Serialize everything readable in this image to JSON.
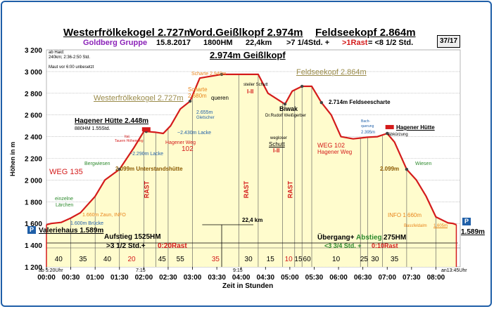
{
  "header": {
    "line1": [
      "Westerfrölkekogel 2.727m",
      "Vord.Geißlkopf 2.974m",
      "Feldseekopf 2.864m"
    ],
    "group": "Goldberg Gruppe",
    "date": "15.8.2017",
    "elev_gain": "1800HM",
    "distance": "22,4km",
    "time_part1": ">7 1/4Std. +",
    "time_rast": ">1Rast",
    "time_part2": "= <8 1/2 Std.",
    "page": "37/17"
  },
  "notes": {
    "ab_haid": "ab Haid:",
    "ab_haid_detail": "240km; 2:36-2:50 Std.",
    "maut": "Maut vor 6:00 unbesetzt"
  },
  "chart_data": {
    "type": "line",
    "title": "",
    "xlabel": "Zeit in Stunden",
    "ylabel": "Höhen in m",
    "xlim": [
      0,
      8.5
    ],
    "ylim": [
      1200,
      3200
    ],
    "x_ticks": [
      "00:00",
      "00:30",
      "01:00",
      "01:30",
      "02:00",
      "02:30",
      "03:00",
      "03:30",
      "04:00",
      "04:30",
      "05:00",
      "05:30",
      "06:00",
      "06:30",
      "07:00",
      "07:30",
      "08:00"
    ],
    "y_ticks": [
      "1 200",
      "1 400",
      "1 600",
      "1 800",
      "2 000",
      "2 200",
      "2 400",
      "2 600",
      "2 800",
      "3 000",
      "3 200"
    ],
    "grid": true,
    "series": [
      {
        "x": [
          0,
          0.1,
          0.3,
          0.5,
          0.7,
          1.0,
          1.2,
          1.5,
          1.8,
          2.0,
          2.05,
          2.25,
          2.4,
          2.55,
          2.75,
          2.95,
          3.15,
          3.6,
          3.95,
          4.35,
          4.55,
          4.9,
          5.05,
          5.25,
          5.45,
          5.65,
          5.85,
          6.05,
          6.3,
          6.6,
          6.8,
          7.0,
          7.15,
          7.4,
          7.6,
          7.8,
          8.0,
          8.25,
          8.35,
          8.42
        ],
        "y": [
          1589,
          1600,
          1610,
          1650,
          1700,
          1850,
          2000,
          2099,
          2300,
          2448,
          2448,
          2440,
          2430,
          2500,
          2655,
          2727,
          2940,
          2974,
          2974,
          2974,
          2800,
          2700,
          2820,
          2864,
          2864,
          2714,
          2600,
          2400,
          2380,
          2395,
          2400,
          2430,
          2350,
          2099,
          2000,
          1850,
          1660,
          1605,
          1600,
          1589
        ]
      }
    ],
    "segment_bands": {
      "minutes": [
        "40",
        "35",
        "40",
        "20",
        "45",
        "55",
        "35",
        "30",
        "15",
        "10",
        "15",
        "60",
        "10",
        "25",
        "30",
        "35"
      ],
      "rast_labels": [
        "RAST",
        "RAST",
        "RAST"
      ]
    },
    "annotations": {
      "peak_main": "2.974m  Geißlkopf",
      "peak_wfk": "Westerfrölkekogel 2.727m",
      "peak_fsk": "Feldseekopf 2.864m",
      "hut": "Hagener Hütte 2.448m",
      "hut_sub": "880HM 1.55Std.",
      "hut_right": "Hagener Hütte",
      "scharte_top": "Scharte 2.940m",
      "scharte_mid": "Scharte",
      "scharte_mid_alt": "2.680m",
      "queren": "queren",
      "gletscher_alt": "2.655m",
      "gletscher": "Gletscher",
      "lacke1": "~2.430m Lacke",
      "lacke2": "~2.290m Lacke",
      "hagener_weg": "Hagener Weg",
      "weg102_left": "102",
      "tauernhoehenweg": "Tauern Höhenweg",
      "ital": "Ital.",
      "steiler_schutt": "steiler Schutt",
      "grade_a": "I-II",
      "biwak": "Biwak",
      "biwak_sub": "Dr.Rudolf Weißgerber",
      "wegloser": "wegloser",
      "schutt": "Schutt",
      "grade_b": "I-II",
      "feldseescharte": "2.714m  Feldseescharte",
      "weg102_right": "WEG 102",
      "hagener_weg_right": "Hagener Weg",
      "bachquerung": "Bach-",
      "bachquerung2": "querung",
      "bach_alt": "2.395m",
      "abkuerzung": "Abkürzung",
      "unterstand": "2.099m Unterstandshütte",
      "unterstand_right": "2.099m",
      "weg135": "WEG 135",
      "bergwiesen": "Bergwiesen",
      "einzelne": "einzelne",
      "laerchen": "Lärchen",
      "zaun": "1.660m Zaun, INFO",
      "bruecke": "1.600m Brücke",
      "info_right": "INFO 1.660m",
      "wiesen": "Wiesen",
      "bassfeldalm": "Bassfeldalm",
      "bassfeld_alt": "1.605m",
      "valeriehaus": "Valeriehaus 1.589m",
      "end_alt": "1.589m",
      "parking": "P",
      "aufstieg": "Aufstieg 1525HM",
      "aufstieg_time": ">3 1/2 Std.+",
      "aufstieg_rast": "0:20Rast",
      "uebergang_a": "Übergang+",
      "uebergang_b": "Abstieg",
      "uebergang_c": "275HM",
      "uebergang_time": "<3 3/4 Std. +",
      "uebergang_rast": "0:10Rast",
      "km": "22,4 km",
      "start_time": "ab 5:20Uhr",
      "t715": "7:15",
      "t915": "9:15",
      "end_time": "an13:45Uhr"
    }
  }
}
